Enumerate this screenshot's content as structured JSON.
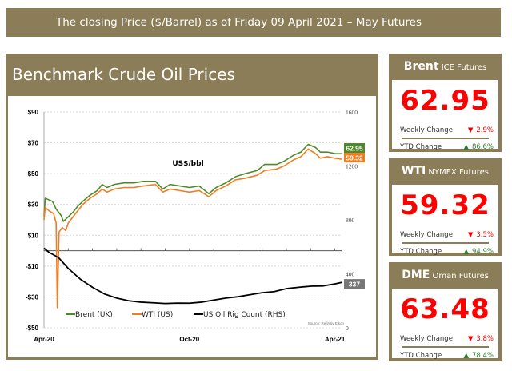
{
  "header": {
    "title": "The closing Price ($/Barrel) as of Friday 09 April 2021 – May Futures"
  },
  "panel": {
    "title": "Benchmark Crude Oil Prices"
  },
  "cards": [
    {
      "name": "Brent",
      "sub": "ICE Futures",
      "price": "62.95",
      "weekly_label": "Weekly Change",
      "weekly_dir": "▼",
      "weekly": "2.9%",
      "ytd_label": "YTD Change",
      "ytd_dir": "▲",
      "ytd": "86.6%"
    },
    {
      "name": "WTI",
      "sub": "NYMEX Futures",
      "price": "59.32",
      "weekly_label": "Weekly Change",
      "weekly_dir": "▼",
      "weekly": "3.5%",
      "ytd_label": "YTD Change",
      "ytd_dir": "▲",
      "ytd": "94.9%"
    },
    {
      "name": "DME",
      "sub": "Oman Futures",
      "price": "63.48",
      "weekly_label": "Weekly Change",
      "weekly_dir": "▼",
      "weekly": "3.8%",
      "ytd_label": "YTD Change",
      "ytd_dir": "▲",
      "ytd": "78.4%"
    }
  ],
  "chart_data": {
    "type": "line",
    "unit_label": "US$/bbl",
    "source": "Source: Refinitiv Eikon",
    "x_unit": "months since Apr-20",
    "x_ticks": [
      {
        "v": 0,
        "label": "Apr-20"
      },
      {
        "v": 6,
        "label": "Oct-20"
      },
      {
        "v": 12,
        "label": "Apr-21"
      }
    ],
    "ylim": [
      -50,
      90
    ],
    "yticks": [
      90,
      70,
      50,
      30,
      10,
      -10,
      -30,
      -50
    ],
    "ytick_labels": [
      "$90",
      "$70",
      "$50",
      "$30",
      "$10",
      "-$10",
      "-$30",
      "-$50"
    ],
    "y2lim": [
      0,
      1600
    ],
    "y2ticks": [
      1600,
      1200,
      800,
      400,
      0
    ],
    "y2tick_labels": [
      "1600",
      "1200",
      "800",
      "400",
      "0"
    ],
    "series": [
      {
        "name": "Brent (UK)",
        "axis": "left",
        "color": "#4e8a2a",
        "end_label": "62.95",
        "points": [
          [
            0,
            22
          ],
          [
            0.05,
            34
          ],
          [
            0.2,
            33
          ],
          [
            0.35,
            32
          ],
          [
            0.5,
            27
          ],
          [
            0.7,
            23
          ],
          [
            0.8,
            19
          ],
          [
            1.0,
            22
          ],
          [
            1.2,
            25
          ],
          [
            1.4,
            29
          ],
          [
            1.6,
            32
          ],
          [
            1.9,
            36
          ],
          [
            2.2,
            39
          ],
          [
            2.4,
            43
          ],
          [
            2.6,
            41
          ],
          [
            2.9,
            43
          ],
          [
            3.3,
            44
          ],
          [
            3.7,
            44
          ],
          [
            4.1,
            45
          ],
          [
            4.6,
            45
          ],
          [
            4.9,
            40
          ],
          [
            5.2,
            43
          ],
          [
            5.6,
            42
          ],
          [
            6,
            41
          ],
          [
            6.4,
            42
          ],
          [
            6.8,
            37
          ],
          [
            7.1,
            41
          ],
          [
            7.5,
            44
          ],
          [
            7.9,
            48
          ],
          [
            8.3,
            50
          ],
          [
            8.8,
            52
          ],
          [
            9.1,
            56
          ],
          [
            9.6,
            56
          ],
          [
            9.9,
            58
          ],
          [
            10.3,
            62
          ],
          [
            10.6,
            64
          ],
          [
            10.9,
            69
          ],
          [
            11.2,
            67
          ],
          [
            11.4,
            64
          ],
          [
            11.7,
            64
          ],
          [
            12,
            63
          ],
          [
            12.3,
            62.95
          ]
        ]
      },
      {
        "name": "WTI (US)",
        "axis": "left",
        "color": "#ef7d22",
        "end_label": "59.32",
        "points": [
          [
            0,
            20
          ],
          [
            0.05,
            28
          ],
          [
            0.2,
            26
          ],
          [
            0.4,
            24
          ],
          [
            0.5,
            18
          ],
          [
            0.55,
            -37
          ],
          [
            0.62,
            12
          ],
          [
            0.75,
            15
          ],
          [
            0.9,
            13
          ],
          [
            1.0,
            18
          ],
          [
            1.2,
            22
          ],
          [
            1.4,
            26
          ],
          [
            1.6,
            30
          ],
          [
            1.9,
            34
          ],
          [
            2.2,
            37
          ],
          [
            2.4,
            40
          ],
          [
            2.6,
            38
          ],
          [
            2.9,
            40
          ],
          [
            3.3,
            41
          ],
          [
            3.7,
            41
          ],
          [
            4.1,
            42
          ],
          [
            4.6,
            43
          ],
          [
            4.9,
            38
          ],
          [
            5.2,
            40
          ],
          [
            5.6,
            39
          ],
          [
            6,
            38
          ],
          [
            6.4,
            39
          ],
          [
            6.8,
            35
          ],
          [
            7.1,
            39
          ],
          [
            7.5,
            42
          ],
          [
            7.9,
            46
          ],
          [
            8.3,
            47
          ],
          [
            8.8,
            49
          ],
          [
            9.1,
            52
          ],
          [
            9.6,
            53
          ],
          [
            9.9,
            55
          ],
          [
            10.3,
            59
          ],
          [
            10.6,
            61
          ],
          [
            10.9,
            66
          ],
          [
            11.2,
            63
          ],
          [
            11.4,
            60
          ],
          [
            11.7,
            61
          ],
          [
            12,
            60
          ],
          [
            12.3,
            59.32
          ]
        ]
      },
      {
        "name": "US Oil Rig Count (RHS)",
        "axis": "right",
        "color": "#000000",
        "end_label": "337",
        "points": [
          [
            0,
            590
          ],
          [
            0.2,
            560
          ],
          [
            0.6,
            520
          ],
          [
            1,
            440
          ],
          [
            1.5,
            360
          ],
          [
            2,
            300
          ],
          [
            2.5,
            250
          ],
          [
            3,
            220
          ],
          [
            3.5,
            200
          ],
          [
            4,
            190
          ],
          [
            4.5,
            185
          ],
          [
            5,
            180
          ],
          [
            5.5,
            183
          ],
          [
            6,
            182
          ],
          [
            6.5,
            190
          ],
          [
            7,
            205
          ],
          [
            7.5,
            220
          ],
          [
            8,
            230
          ],
          [
            8.5,
            245
          ],
          [
            9,
            260
          ],
          [
            9.5,
            268
          ],
          [
            10,
            290
          ],
          [
            10.5,
            300
          ],
          [
            11,
            308
          ],
          [
            11.5,
            310
          ],
          [
            12,
            325
          ],
          [
            12.3,
            337
          ]
        ]
      }
    ]
  }
}
